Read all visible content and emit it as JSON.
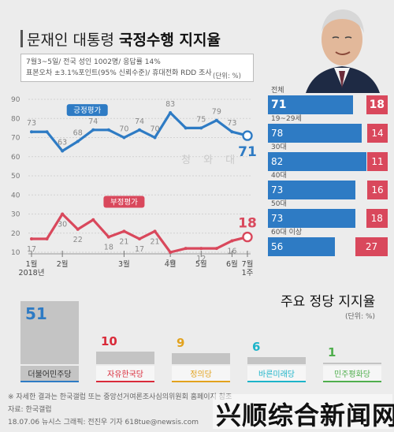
{
  "header": {
    "title_light": "문재인 대통령 ",
    "title_bold": "국정수행 지지율",
    "survey_line1": "7월3~5일/ 전국 성인 1002명/ 응답률 14%",
    "survey_line2": "표본오차 ±3.1%포인트(95% 신뢰수준)/ 휴대전화 RDD 조사",
    "unit": "(단위: %)"
  },
  "watermark_seal": "청 와 대",
  "chart_data": [
    {
      "type": "line",
      "x_labels": [
        "1월\n2018년",
        "2월",
        "3월",
        "4월",
        "5월",
        "6월",
        "7월\n1주"
      ],
      "ylim": [
        10,
        90
      ],
      "y_ticks": [
        10,
        20,
        30,
        40,
        50,
        60,
        70,
        80,
        90
      ],
      "series": [
        {
          "name": "긍정평가",
          "color": "#2e7bc4",
          "values": [
            73,
            73,
            63,
            68,
            74,
            74,
            70,
            74,
            70,
            83,
            75,
            75,
            79,
            73,
            71
          ],
          "labels": [
            "73",
            "",
            "63",
            "68",
            "74",
            "",
            "70",
            "74",
            "70",
            "83",
            "",
            "75",
            "79",
            "73",
            "71"
          ]
        },
        {
          "name": "부정평가",
          "color": "#d9485c",
          "values": [
            17,
            17,
            30,
            22,
            27,
            18,
            21,
            17,
            21,
            10,
            12,
            12,
            12,
            16,
            18
          ],
          "labels": [
            "17",
            "",
            "30",
            "22",
            "",
            "18",
            "21",
            "17",
            "21",
            "10",
            "",
            "12",
            "",
            "16",
            "18"
          ]
        }
      ]
    },
    {
      "type": "bar",
      "categories": [
        "전체",
        "19~29세",
        "30대",
        "40대",
        "50대",
        "60대 이상"
      ],
      "series": [
        {
          "name": "긍정",
          "color": "#2e7bc4",
          "values": [
            71,
            78,
            82,
            73,
            73,
            56
          ]
        },
        {
          "name": "부정",
          "color": "#d9485c",
          "values": [
            18,
            14,
            11,
            16,
            18,
            27
          ]
        }
      ]
    },
    {
      "type": "bar",
      "title": "주요 정당 지지율",
      "unit": "(단위: %)",
      "categories": [
        "더불어민주당",
        "자유한국당",
        "정의당",
        "바른미래당",
        "민주평화당"
      ],
      "values": [
        51,
        10,
        9,
        6,
        1
      ],
      "value_labels": [
        "51",
        "10",
        "9",
        "6",
        "1"
      ],
      "colors": [
        "#2e7bc4",
        "#d92b3a",
        "#e2a21d",
        "#1db4c9",
        "#4fae4d"
      ],
      "ylim": [
        0,
        51
      ]
    }
  ],
  "footer": {
    "note": "※ 자세한 결과는 한국갤럽 또는 중앙선거여론조사심의위원회 홈페이지 참조",
    "source": "자료: 한국갤럽",
    "credit": "18.07.06 뉴시스 그래픽: 전진우 기자 618tue@newsis.com"
  },
  "overlay_watermark": "兴顺综合新闻网"
}
